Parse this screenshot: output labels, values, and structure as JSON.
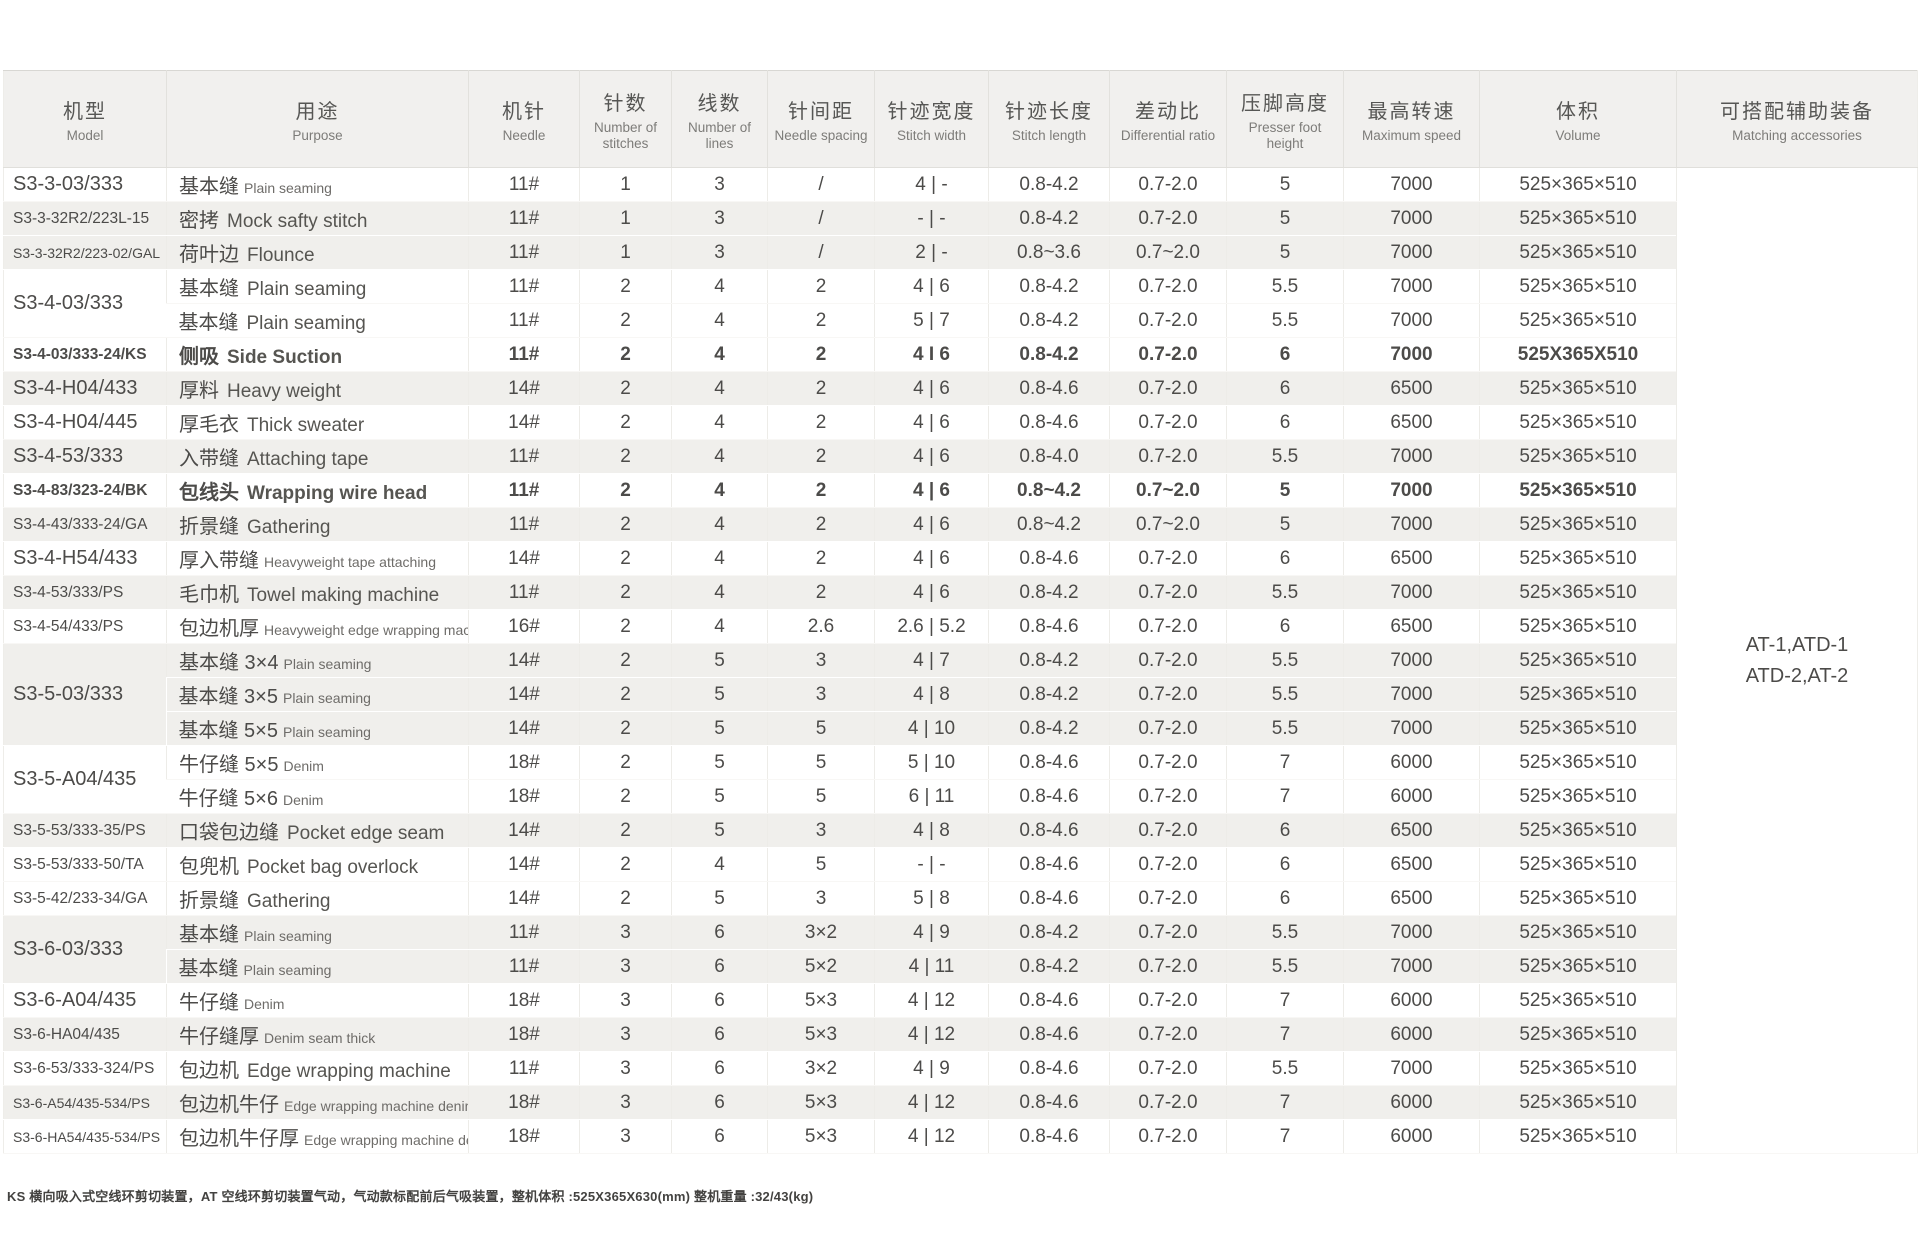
{
  "table": {
    "columns": [
      {
        "zh": "机型",
        "en": "Model"
      },
      {
        "zh": "用途",
        "en": "Purpose"
      },
      {
        "zh": "机针",
        "en": "Needle"
      },
      {
        "zh": "针数",
        "en": "Number of stitches"
      },
      {
        "zh": "线数",
        "en": "Number of lines"
      },
      {
        "zh": "针间距",
        "en": "Needle spacing"
      },
      {
        "zh": "针迹宽度",
        "en": "Stitch width"
      },
      {
        "zh": "针迹长度",
        "en": "Stitch length"
      },
      {
        "zh": "差动比",
        "en": "Differential ratio"
      },
      {
        "zh": "压脚高度",
        "en": "Presser foot height"
      },
      {
        "zh": "最高转速",
        "en": "Maximum speed"
      },
      {
        "zh": "体积",
        "en": "Volume"
      },
      {
        "zh": "可搭配辅助装备",
        "en": "Matching accessories"
      }
    ],
    "accessories": [
      "AT-1,ATD-1",
      "ATD-2,AT-2"
    ],
    "rows": [
      {
        "model": "S3-3-03/333",
        "span": 1,
        "purpose_zh": "基本缝",
        "purpose_en": "Plain seaming",
        "en_small": true,
        "needle": "11#",
        "stitches": "1",
        "lines": "3",
        "spacing": "/",
        "stitch_width": "4 | -",
        "stitch_length": "0.8-4.2",
        "diff_ratio": "0.7-2.0",
        "presser_height": "5",
        "max_speed": "7000",
        "volume": "525×365×510",
        "shaded": false,
        "highlight": false
      },
      {
        "model": "S3-3-32R2/223L-15",
        "span": 1,
        "purpose_zh": "密拷",
        "purpose_en": "Mock safty stitch",
        "en_small": false,
        "needle": "11#",
        "stitches": "1",
        "lines": "3",
        "spacing": "/",
        "stitch_width": "- | -",
        "stitch_length": "0.8-4.2",
        "diff_ratio": "0.7-2.0",
        "presser_height": "5",
        "max_speed": "7000",
        "volume": "525×365×510",
        "shaded": true,
        "highlight": false
      },
      {
        "model": "S3-3-32R2/223-02/GAL",
        "span": 1,
        "purpose_zh": "荷叶边",
        "purpose_en": "Flounce",
        "en_small": false,
        "needle": "11#",
        "stitches": "1",
        "lines": "3",
        "spacing": "/",
        "stitch_width": "2 | -",
        "stitch_length": "0.8~3.6",
        "diff_ratio": "0.7~2.0",
        "presser_height": "5",
        "max_speed": "7000",
        "volume": "525×365×510",
        "shaded": true,
        "highlight": false
      },
      {
        "model": "S3-4-03/333",
        "span": 2,
        "purpose_zh": "基本缝",
        "purpose_en": "Plain seaming",
        "en_small": false,
        "needle": "11#",
        "stitches": "2",
        "lines": "4",
        "spacing": "2",
        "stitch_width": "4 | 6",
        "stitch_length": "0.8-4.2",
        "diff_ratio": "0.7-2.0",
        "presser_height": "5.5",
        "max_speed": "7000",
        "volume": "525×365×510",
        "shaded": false,
        "highlight": false
      },
      {
        "model": null,
        "span": 1,
        "purpose_zh": "基本缝",
        "purpose_en": "Plain seaming",
        "en_small": false,
        "needle": "11#",
        "stitches": "2",
        "lines": "4",
        "spacing": "2",
        "stitch_width": "5 | 7",
        "stitch_length": "0.8-4.2",
        "diff_ratio": "0.7-2.0",
        "presser_height": "5.5",
        "max_speed": "7000",
        "volume": "525×365×510",
        "shaded": false,
        "highlight": false
      },
      {
        "model": "S3-4-03/333-24/KS",
        "span": 1,
        "purpose_zh": "侧吸",
        "purpose_en": "Side Suction",
        "en_small": false,
        "needle": "11#",
        "stitches": "2",
        "lines": "4",
        "spacing": "2",
        "stitch_width": "4 I 6",
        "stitch_length": "0.8-4.2",
        "diff_ratio": "0.7-2.0",
        "presser_height": "6",
        "max_speed": "7000",
        "volume": "525X365X510",
        "shaded": false,
        "highlight": true
      },
      {
        "model": "S3-4-H04/433",
        "span": 1,
        "purpose_zh": "厚料",
        "purpose_en": "Heavy weight",
        "en_small": false,
        "needle": "14#",
        "stitches": "2",
        "lines": "4",
        "spacing": "2",
        "stitch_width": "4 | 6",
        "stitch_length": "0.8-4.6",
        "diff_ratio": "0.7-2.0",
        "presser_height": "6",
        "max_speed": "6500",
        "volume": "525×365×510",
        "shaded": true,
        "highlight": false
      },
      {
        "model": "S3-4-H04/445",
        "span": 1,
        "purpose_zh": "厚毛衣",
        "purpose_en": "Thick sweater",
        "en_small": false,
        "needle": "14#",
        "stitches": "2",
        "lines": "4",
        "spacing": "2",
        "stitch_width": "4 | 6",
        "stitch_length": "0.8-4.6",
        "diff_ratio": "0.7-2.0",
        "presser_height": "6",
        "max_speed": "6500",
        "volume": "525×365×510",
        "shaded": false,
        "highlight": false
      },
      {
        "model": "S3-4-53/333",
        "span": 1,
        "purpose_zh": "入带缝",
        "purpose_en": "Attaching tape",
        "en_small": false,
        "needle": "11#",
        "stitches": "2",
        "lines": "4",
        "spacing": "2",
        "stitch_width": "4 | 6",
        "stitch_length": "0.8-4.0",
        "diff_ratio": "0.7-2.0",
        "presser_height": "5.5",
        "max_speed": "7000",
        "volume": "525×365×510",
        "shaded": true,
        "highlight": false
      },
      {
        "model": "S3-4-83/323-24/BK",
        "span": 1,
        "purpose_zh": "包线头",
        "purpose_en": "Wrapping wire head",
        "en_small": false,
        "needle": "11#",
        "stitches": "2",
        "lines": "4",
        "spacing": "2",
        "stitch_width": "4 | 6",
        "stitch_length": "0.8~4.2",
        "diff_ratio": "0.7~2.0",
        "presser_height": "5",
        "max_speed": "7000",
        "volume": "525×365×510",
        "shaded": false,
        "highlight": true
      },
      {
        "model": "S3-4-43/333-24/GA",
        "span": 1,
        "purpose_zh": "折景缝",
        "purpose_en": "Gathering",
        "en_small": false,
        "needle": "11#",
        "stitches": "2",
        "lines": "4",
        "spacing": "2",
        "stitch_width": "4 | 6",
        "stitch_length": "0.8~4.2",
        "diff_ratio": "0.7~2.0",
        "presser_height": "5",
        "max_speed": "7000",
        "volume": "525×365×510",
        "shaded": true,
        "highlight": false
      },
      {
        "model": "S3-4-H54/433",
        "span": 1,
        "purpose_zh": "厚入带缝",
        "purpose_en": "Heavyweight tape attaching",
        "en_small": true,
        "needle": "14#",
        "stitches": "2",
        "lines": "4",
        "spacing": "2",
        "stitch_width": "4 | 6",
        "stitch_length": "0.8-4.6",
        "diff_ratio": "0.7-2.0",
        "presser_height": "6",
        "max_speed": "6500",
        "volume": "525×365×510",
        "shaded": false,
        "highlight": false
      },
      {
        "model": "S3-4-53/333/PS",
        "span": 1,
        "purpose_zh": "毛巾机",
        "purpose_en": "Towel making machine",
        "en_small": false,
        "needle": "11#",
        "stitches": "2",
        "lines": "4",
        "spacing": "2",
        "stitch_width": "4 | 6",
        "stitch_length": "0.8-4.2",
        "diff_ratio": "0.7-2.0",
        "presser_height": "5.5",
        "max_speed": "7000",
        "volume": "525×365×510",
        "shaded": true,
        "highlight": false
      },
      {
        "model": "S3-4-54/433/PS",
        "span": 1,
        "purpose_zh": "包边机厚",
        "purpose_en": "Heavyweight edge wrapping machine",
        "en_small": true,
        "needle": "16#",
        "stitches": "2",
        "lines": "4",
        "spacing": "2.6",
        "stitch_width": "2.6 | 5.2",
        "stitch_length": "0.8-4.6",
        "diff_ratio": "0.7-2.0",
        "presser_height": "6",
        "max_speed": "6500",
        "volume": "525×365×510",
        "shaded": false,
        "highlight": false
      },
      {
        "model": "S3-5-03/333",
        "span": 3,
        "purpose_zh": "基本缝 3×4",
        "purpose_en": "Plain seaming",
        "en_small": true,
        "needle": "14#",
        "stitches": "2",
        "lines": "5",
        "spacing": "3",
        "stitch_width": "4 | 7",
        "stitch_length": "0.8-4.2",
        "diff_ratio": "0.7-2.0",
        "presser_height": "5.5",
        "max_speed": "7000",
        "volume": "525×365×510",
        "shaded": true,
        "highlight": false
      },
      {
        "model": null,
        "span": 1,
        "purpose_zh": "基本缝 3×5",
        "purpose_en": "Plain seaming",
        "en_small": true,
        "needle": "14#",
        "stitches": "2",
        "lines": "5",
        "spacing": "3",
        "stitch_width": "4 | 8",
        "stitch_length": "0.8-4.2",
        "diff_ratio": "0.7-2.0",
        "presser_height": "5.5",
        "max_speed": "7000",
        "volume": "525×365×510",
        "shaded": true,
        "highlight": false
      },
      {
        "model": null,
        "span": 1,
        "purpose_zh": "基本缝 5×5",
        "purpose_en": "Plain seaming",
        "en_small": true,
        "needle": "14#",
        "stitches": "2",
        "lines": "5",
        "spacing": "5",
        "stitch_width": "4 | 10",
        "stitch_length": "0.8-4.2",
        "diff_ratio": "0.7-2.0",
        "presser_height": "5.5",
        "max_speed": "7000",
        "volume": "525×365×510",
        "shaded": true,
        "highlight": false
      },
      {
        "model": "S3-5-A04/435",
        "span": 2,
        "purpose_zh": "牛仔缝 5×5",
        "purpose_en": "Denim",
        "en_small": true,
        "needle": "18#",
        "stitches": "2",
        "lines": "5",
        "spacing": "5",
        "stitch_width": "5 | 10",
        "stitch_length": "0.8-4.6",
        "diff_ratio": "0.7-2.0",
        "presser_height": "7",
        "max_speed": "6000",
        "volume": "525×365×510",
        "shaded": false,
        "highlight": false
      },
      {
        "model": null,
        "span": 1,
        "purpose_zh": "牛仔缝 5×6",
        "purpose_en": "Denim",
        "en_small": true,
        "needle": "18#",
        "stitches": "2",
        "lines": "5",
        "spacing": "5",
        "stitch_width": "6 | 11",
        "stitch_length": "0.8-4.6",
        "diff_ratio": "0.7-2.0",
        "presser_height": "7",
        "max_speed": "6000",
        "volume": "525×365×510",
        "shaded": false,
        "highlight": false
      },
      {
        "model": "S3-5-53/333-35/PS",
        "span": 1,
        "purpose_zh": "口袋包边缝",
        "purpose_en": "Pocket edge seam",
        "en_small": false,
        "needle": "14#",
        "stitches": "2",
        "lines": "5",
        "spacing": "3",
        "stitch_width": "4 | 8",
        "stitch_length": "0.8-4.6",
        "diff_ratio": "0.7-2.0",
        "presser_height": "6",
        "max_speed": "6500",
        "volume": "525×365×510",
        "shaded": true,
        "highlight": false
      },
      {
        "model": "S3-5-53/333-50/TA",
        "span": 1,
        "purpose_zh": "包兜机",
        "purpose_en": "Pocket bag overlock",
        "en_small": false,
        "needle": "14#",
        "stitches": "2",
        "lines": "4",
        "spacing": "5",
        "stitch_width": "- | -",
        "stitch_length": "0.8-4.6",
        "diff_ratio": "0.7-2.0",
        "presser_height": "6",
        "max_speed": "6500",
        "volume": "525×365×510",
        "shaded": false,
        "highlight": false
      },
      {
        "model": "S3-5-42/233-34/GA",
        "span": 1,
        "purpose_zh": "折景缝",
        "purpose_en": "Gathering",
        "en_small": false,
        "needle": "14#",
        "stitches": "2",
        "lines": "5",
        "spacing": "3",
        "stitch_width": "5 | 8",
        "stitch_length": "0.8-4.6",
        "diff_ratio": "0.7-2.0",
        "presser_height": "6",
        "max_speed": "6500",
        "volume": "525×365×510",
        "shaded": false,
        "highlight": false
      },
      {
        "model": "S3-6-03/333",
        "span": 2,
        "purpose_zh": "基本缝",
        "purpose_en": "Plain seaming",
        "en_small": true,
        "needle": "11#",
        "stitches": "3",
        "lines": "6",
        "spacing": "3×2",
        "stitch_width": "4 | 9",
        "stitch_length": "0.8-4.2",
        "diff_ratio": "0.7-2.0",
        "presser_height": "5.5",
        "max_speed": "7000",
        "volume": "525×365×510",
        "shaded": true,
        "highlight": false
      },
      {
        "model": null,
        "span": 1,
        "purpose_zh": "基本缝",
        "purpose_en": "Plain seaming",
        "en_small": true,
        "needle": "11#",
        "stitches": "3",
        "lines": "6",
        "spacing": "5×2",
        "stitch_width": "4 | 11",
        "stitch_length": "0.8-4.2",
        "diff_ratio": "0.7-2.0",
        "presser_height": "5.5",
        "max_speed": "7000",
        "volume": "525×365×510",
        "shaded": true,
        "highlight": false
      },
      {
        "model": "S3-6-A04/435",
        "span": 1,
        "purpose_zh": "牛仔缝",
        "purpose_en": "Denim",
        "en_small": true,
        "needle": "18#",
        "stitches": "3",
        "lines": "6",
        "spacing": "5×3",
        "stitch_width": "4 | 12",
        "stitch_length": "0.8-4.6",
        "diff_ratio": "0.7-2.0",
        "presser_height": "7",
        "max_speed": "6000",
        "volume": "525×365×510",
        "shaded": false,
        "highlight": false
      },
      {
        "model": "S3-6-HA04/435",
        "span": 1,
        "purpose_zh": "牛仔缝厚",
        "purpose_en": "Denim seam thick",
        "en_small": true,
        "needle": "18#",
        "stitches": "3",
        "lines": "6",
        "spacing": "5×3",
        "stitch_width": "4 | 12",
        "stitch_length": "0.8-4.6",
        "diff_ratio": "0.7-2.0",
        "presser_height": "7",
        "max_speed": "6000",
        "volume": "525×365×510",
        "shaded": true,
        "highlight": false
      },
      {
        "model": "S3-6-53/333-324/PS",
        "span": 1,
        "purpose_zh": "包边机",
        "purpose_en": "Edge wrapping machine",
        "en_small": false,
        "needle": "11#",
        "stitches": "3",
        "lines": "6",
        "spacing": "3×2",
        "stitch_width": "4 | 9",
        "stitch_length": "0.8-4.6",
        "diff_ratio": "0.7-2.0",
        "presser_height": "5.5",
        "max_speed": "7000",
        "volume": "525×365×510",
        "shaded": false,
        "highlight": false
      },
      {
        "model": "S3-6-A54/435-534/PS",
        "span": 1,
        "purpose_zh": "包边机牛仔",
        "purpose_en": "Edge wrapping machine denim",
        "en_small": true,
        "needle": "18#",
        "stitches": "3",
        "lines": "6",
        "spacing": "5×3",
        "stitch_width": "4 | 12",
        "stitch_length": "0.8-4.6",
        "diff_ratio": "0.7-2.0",
        "presser_height": "7",
        "max_speed": "6000",
        "volume": "525×365×510",
        "shaded": true,
        "highlight": false
      },
      {
        "model": "S3-6-HA54/435-534/PS",
        "span": 1,
        "purpose_zh": "包边机牛仔厚",
        "purpose_en": "Edge wrapping machine denim think",
        "en_small": true,
        "needle": "18#",
        "stitches": "3",
        "lines": "6",
        "spacing": "5×3",
        "stitch_width": "4 | 12",
        "stitch_length": "0.8-4.6",
        "diff_ratio": "0.7-2.0",
        "presser_height": "7",
        "max_speed": "6000",
        "volume": "525×365×510",
        "shaded": false,
        "highlight": false
      }
    ]
  },
  "footnote": "KS 横向吸入式空线环剪切装置，AT 空线环剪切装置气动，气动款标配前后气吸装置，整机体积 :525X365X630(mm) 整机重量 :32/43(kg)"
}
